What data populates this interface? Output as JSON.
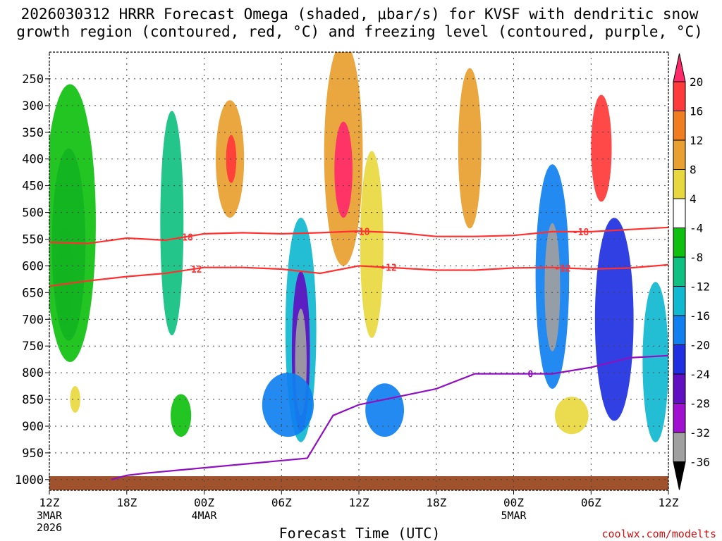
{
  "chart_data": {
    "type": "heatmap",
    "title_line1": "2026030312 HRRR Forecast Omega (shaded, μbar/s) for KVSF with dendritic snow",
    "title_line2": "growth region (contoured, red, °C) and freezing level (contoured, purple, °C)",
    "xlabel": "Forecast Time (UTC)",
    "credit": "coolwx.com/modelts",
    "x_range_hours": [
      0,
      48
    ],
    "y_range_hpa": [
      1020,
      200
    ],
    "y_ticks": [
      250,
      300,
      350,
      400,
      450,
      500,
      550,
      600,
      650,
      700,
      750,
      800,
      850,
      900,
      950,
      1000
    ],
    "x_ticks": [
      {
        "hour": 0,
        "label": "12Z",
        "sub": [
          "3MAR",
          "2026"
        ]
      },
      {
        "hour": 6,
        "label": "18Z",
        "sub": []
      },
      {
        "hour": 12,
        "label": "00Z",
        "sub": [
          "4MAR"
        ]
      },
      {
        "hour": 18,
        "label": "06Z",
        "sub": []
      },
      {
        "hour": 24,
        "label": "12Z",
        "sub": []
      },
      {
        "hour": 30,
        "label": "18Z",
        "sub": []
      },
      {
        "hour": 36,
        "label": "00Z",
        "sub": [
          "5MAR"
        ]
      },
      {
        "hour": 42,
        "label": "06Z",
        "sub": []
      },
      {
        "hour": 48,
        "label": "12Z",
        "sub": []
      }
    ],
    "colorbar": {
      "labels": [
        "20",
        "16",
        "12",
        "8",
        "4",
        "-4",
        "-8",
        "-12",
        "-16",
        "-20",
        "-24",
        "-28",
        "-32",
        "-36"
      ],
      "levels": [
        20,
        16,
        12,
        8,
        4,
        -4,
        -8,
        -12,
        -16,
        -20,
        -24,
        -28,
        -32,
        -36
      ],
      "colors": [
        "#ff2a6a",
        "#ff3a3a",
        "#f07d20",
        "#e8a030",
        "#e8d840",
        "#ffffff",
        "#10c010",
        "#10c080",
        "#10b8d0",
        "#1080f0",
        "#2030e0",
        "#6010c0",
        "#a010d0",
        "#a0a0a0",
        "#000000"
      ]
    },
    "omega_cells": [
      {
        "hour": 1.2,
        "p": 620,
        "dh": 1.4,
        "dp": 180,
        "omega": -36
      },
      {
        "hour": 1.5,
        "p": 560,
        "dh": 2.6,
        "dp": 360,
        "omega": -24
      },
      {
        "hour": 1.6,
        "p": 520,
        "dh": 4.0,
        "dp": 520,
        "omega": -8
      },
      {
        "hour": 2.0,
        "p": 850,
        "dh": 0.8,
        "dp": 50,
        "omega": 4
      },
      {
        "hour": 9.5,
        "p": 520,
        "dh": 1.8,
        "dp": 420,
        "omega": -12
      },
      {
        "hour": 10.2,
        "p": 880,
        "dh": 1.6,
        "dp": 80,
        "omega": -8
      },
      {
        "hour": 14.0,
        "p": 400,
        "dh": 2.2,
        "dp": 220,
        "omega": 8
      },
      {
        "hour": 14.1,
        "p": 400,
        "dh": 0.8,
        "dp": 90,
        "omega": 16
      },
      {
        "hour": 19.5,
        "p": 720,
        "dh": 2.4,
        "dp": 420,
        "omega": -16
      },
      {
        "hour": 19.5,
        "p": 760,
        "dh": 1.4,
        "dp": 300,
        "omega": -28
      },
      {
        "hour": 19.5,
        "p": 780,
        "dh": 0.9,
        "dp": 200,
        "omega": -36
      },
      {
        "hour": 18.5,
        "p": 860,
        "dh": 4.0,
        "dp": 120,
        "omega": -20
      },
      {
        "hour": 22.8,
        "p": 390,
        "dh": 3.0,
        "dp": 420,
        "omega": 8
      },
      {
        "hour": 22.8,
        "p": 420,
        "dh": 1.4,
        "dp": 180,
        "omega": 20
      },
      {
        "hour": 25.0,
        "p": 560,
        "dh": 1.8,
        "dp": 350,
        "omega": 4
      },
      {
        "hour": 26.0,
        "p": 870,
        "dh": 3.0,
        "dp": 100,
        "omega": -20
      },
      {
        "hour": 32.6,
        "p": 380,
        "dh": 1.8,
        "dp": 300,
        "omega": 8
      },
      {
        "hour": 39.0,
        "p": 620,
        "dh": 2.6,
        "dp": 420,
        "omega": -20
      },
      {
        "hour": 39.0,
        "p": 640,
        "dh": 1.2,
        "dp": 240,
        "omega": -36
      },
      {
        "hour": 40.5,
        "p": 880,
        "dh": 2.6,
        "dp": 70,
        "omega": 4
      },
      {
        "hour": 42.8,
        "p": 380,
        "dh": 1.6,
        "dp": 200,
        "omega": 16
      },
      {
        "hour": 43.8,
        "p": 700,
        "dh": 3.0,
        "dp": 380,
        "omega": -24
      },
      {
        "hour": 47.0,
        "p": 780,
        "dh": 2.0,
        "dp": 300,
        "omega": -16
      }
    ],
    "contours": [
      {
        "name": "dgz-minus18",
        "label": "-18",
        "color": "#ff3030",
        "hours": [
          0,
          3,
          6,
          9,
          12,
          15,
          18,
          21,
          24,
          27,
          30,
          33,
          36,
          39,
          42,
          45,
          48
        ],
        "p": [
          556,
          558,
          548,
          552,
          540,
          538,
          540,
          538,
          535,
          538,
          545,
          545,
          543,
          536,
          536,
          532,
          528
        ],
        "label_hours": [
          10.5,
          24.2,
          41.2
        ]
      },
      {
        "name": "dgz-minus12",
        "label": "-12",
        "color": "#ff3030",
        "hours": [
          0,
          3,
          6,
          9,
          12,
          15,
          18,
          21,
          24,
          27,
          30,
          33,
          36,
          39,
          42,
          45,
          48
        ],
        "p": [
          638,
          628,
          620,
          614,
          603,
          603,
          606,
          614,
          600,
          604,
          608,
          608,
          604,
          603,
          606,
          604,
          598
        ],
        "label_hours": [
          11.2,
          26.3,
          39.8
        ]
      },
      {
        "name": "freezing-level",
        "label": "0",
        "color": "#9010c0",
        "hours": [
          4.8,
          6,
          7.5,
          20,
          21,
          22,
          24,
          27,
          30,
          33,
          36,
          39,
          42,
          45,
          48
        ],
        "p": [
          1000,
          992,
          988,
          960,
          920,
          880,
          860,
          845,
          830,
          802,
          802,
          802,
          790,
          772,
          768
        ],
        "label_hours": [
          37.3
        ]
      }
    ]
  }
}
